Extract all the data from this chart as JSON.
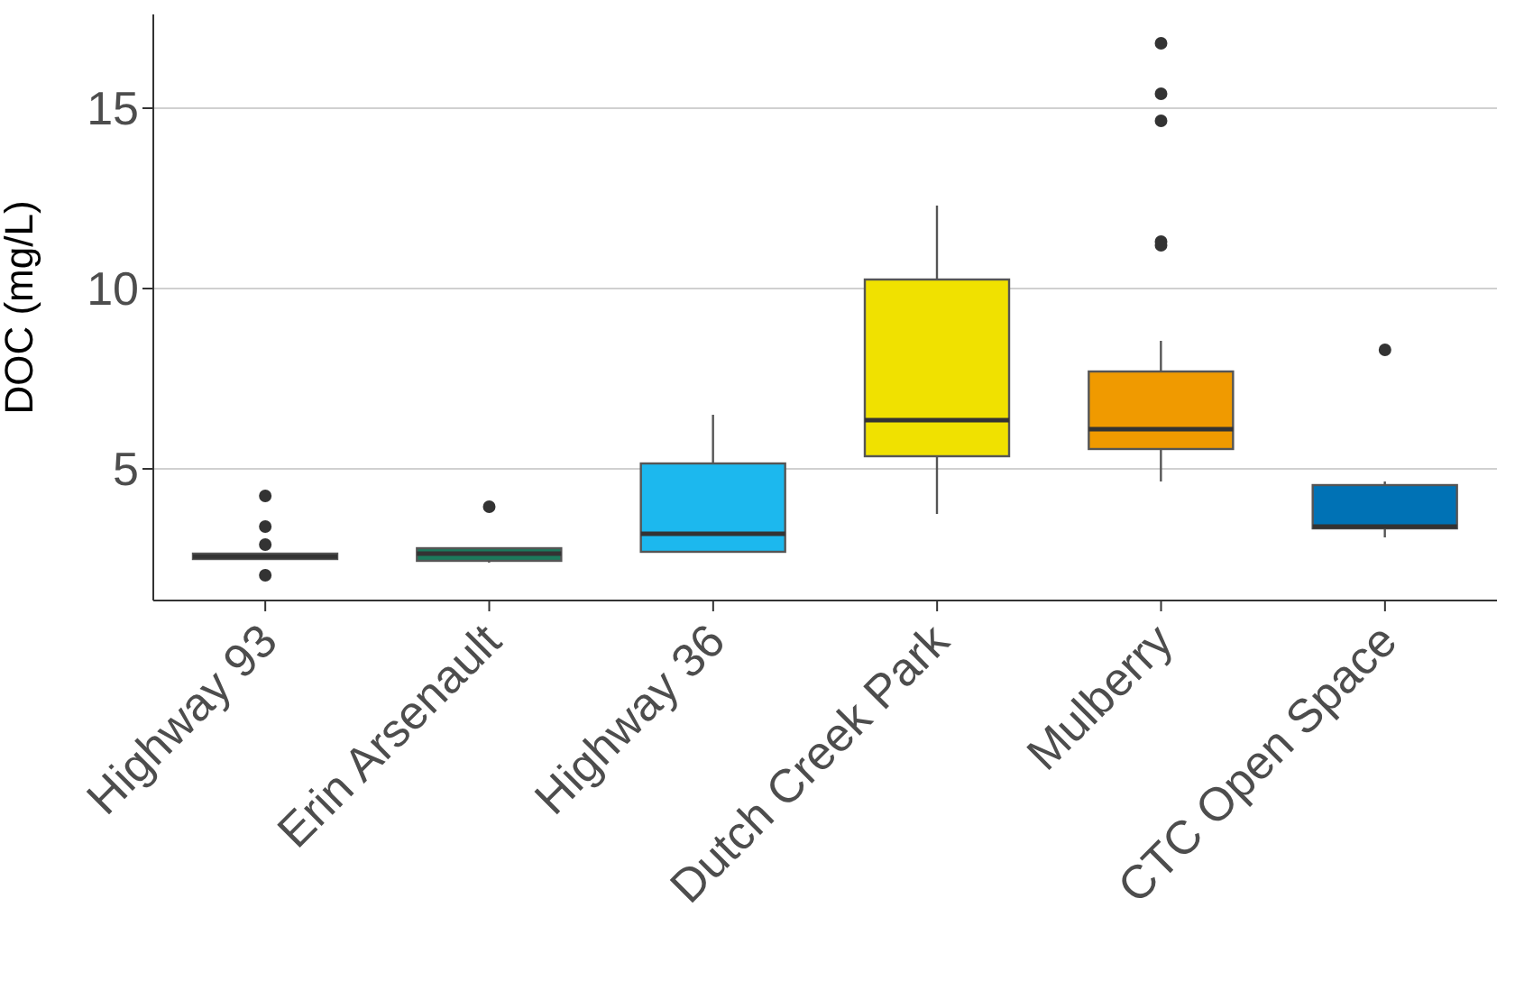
{
  "chart_data": {
    "type": "box",
    "ylabel": "DOC (mg/L)",
    "categories": [
      "Highway 93",
      "Erin Arsenault",
      "Highway 36",
      "Dutch Creek Park",
      "Mulberry",
      "CTC Open Space"
    ],
    "colors": [
      "#8a8a8a",
      "#1b7a5c",
      "#1cb8ee",
      "#f0e100",
      "#f09a00",
      "#0072b5"
    ],
    "boxes": [
      {
        "low": 2.5,
        "q1": 2.5,
        "median": 2.57,
        "q3": 2.65,
        "high": 2.65,
        "outliers": [
          4.25,
          3.4,
          2.9,
          2.05
        ]
      },
      {
        "low": 2.4,
        "q1": 2.45,
        "median": 2.65,
        "q3": 2.8,
        "high": 2.8,
        "outliers": [
          3.95
        ]
      },
      {
        "low": 2.7,
        "q1": 2.7,
        "median": 3.2,
        "q3": 5.15,
        "high": 6.5
      },
      {
        "low": 3.75,
        "q1": 5.35,
        "median": 6.35,
        "q3": 10.25,
        "high": 12.3
      },
      {
        "low": 4.65,
        "q1": 5.55,
        "median": 6.1,
        "q3": 7.7,
        "high": 8.55,
        "outliers": [
          16.8,
          15.4,
          14.65,
          11.3,
          11.2
        ]
      },
      {
        "low": 3.1,
        "q1": 3.35,
        "median": 3.4,
        "q3": 4.55,
        "high": 4.65,
        "outliers": [
          8.3
        ]
      }
    ],
    "ylim": [
      1.35,
      17.6
    ],
    "yticks": [
      5,
      10,
      15
    ],
    "grid": "y"
  }
}
